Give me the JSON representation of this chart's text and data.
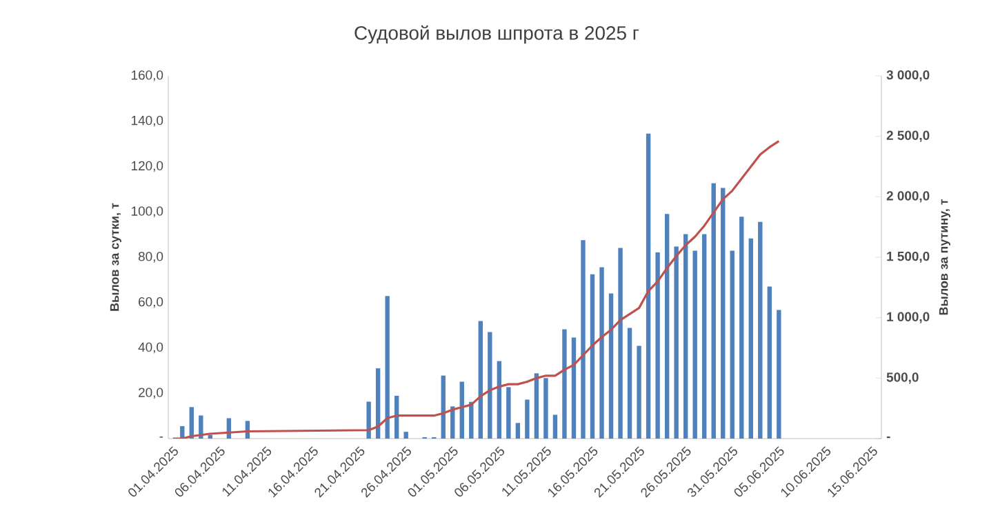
{
  "chart_data": {
    "type": "bar",
    "title": "Судовой вылов шпрота в 2025 г",
    "ylabel": "Вылов за сутки,  т",
    "y2label": "Вылов за путину, т",
    "xlim": [
      "2025-03-31T12:00",
      "2025-06-16"
    ],
    "xticks": [
      {
        "value": "2025-04-01",
        "label": "01.04.2025"
      },
      {
        "value": "2025-04-06",
        "label": "06.04.2025"
      },
      {
        "value": "2025-04-11",
        "label": "11.04.2025"
      },
      {
        "value": "2025-04-16",
        "label": "16.04.2025"
      },
      {
        "value": "2025-04-21",
        "label": "21.04.2025"
      },
      {
        "value": "2025-04-26",
        "label": "26.04.2025"
      },
      {
        "value": "2025-05-01",
        "label": "01.05.2025"
      },
      {
        "value": "2025-05-06",
        "label": "06.05.2025"
      },
      {
        "value": "2025-05-11",
        "label": "11.05.2025"
      },
      {
        "value": "2025-05-16",
        "label": "16.05.2025"
      },
      {
        "value": "2025-05-21",
        "label": "21.05.2025"
      },
      {
        "value": "2025-05-26",
        "label": "26.05.2025"
      },
      {
        "value": "2025-05-31",
        "label": "31.05.2025"
      },
      {
        "value": "2025-06-05",
        "label": "05.06.2025"
      },
      {
        "value": "2025-06-10",
        "label": "10.06.2025"
      },
      {
        "value": "2025-06-15",
        "label": "15.06.2025"
      }
    ],
    "ylim": [
      0,
      160
    ],
    "yticks": [
      {
        "value": 0,
        "label": "-"
      },
      {
        "value": 20,
        "label": "20,0"
      },
      {
        "value": 40,
        "label": "40,0"
      },
      {
        "value": 60,
        "label": "60,0"
      },
      {
        "value": 80,
        "label": "80,0"
      },
      {
        "value": 100,
        "label": "100,0"
      },
      {
        "value": 120,
        "label": "120,0"
      },
      {
        "value": 140,
        "label": "140,0"
      },
      {
        "value": 160,
        "label": "160,0"
      }
    ],
    "y2lim": [
      0,
      3000
    ],
    "y2ticks": [
      {
        "value": 0,
        "label": "-"
      },
      {
        "value": 500,
        "label": "500,0"
      },
      {
        "value": 1000,
        "label": "1 000,0"
      },
      {
        "value": 1500,
        "label": "1 500,0"
      },
      {
        "value": 2000,
        "label": "2 000,0"
      },
      {
        "value": 2500,
        "label": "2 500,0"
      },
      {
        "value": 3000,
        "label": "3 000,0"
      }
    ],
    "grid": false,
    "legend": false,
    "series": [
      {
        "color": "#4f81bd",
        "x": [
          "2025-04-02",
          "2025-04-03",
          "2025-04-04",
          "2025-04-05",
          "2025-04-07",
          "2025-04-09",
          "2025-04-22",
          "2025-04-23",
          "2025-04-24",
          "2025-04-25",
          "2025-04-26",
          "2025-04-28",
          "2025-04-29",
          "2025-04-30",
          "2025-05-01",
          "2025-05-02",
          "2025-05-03",
          "2025-05-04",
          "2025-05-05",
          "2025-05-06",
          "2025-05-07",
          "2025-05-08",
          "2025-05-09",
          "2025-05-10",
          "2025-05-11",
          "2025-05-12",
          "2025-05-13",
          "2025-05-14",
          "2025-05-15",
          "2025-05-16",
          "2025-05-17",
          "2025-05-18",
          "2025-05-19",
          "2025-05-20",
          "2025-05-21",
          "2025-05-22",
          "2025-05-23",
          "2025-05-24",
          "2025-05-25",
          "2025-05-26",
          "2025-05-27",
          "2025-05-28",
          "2025-05-29",
          "2025-05-30",
          "2025-05-31",
          "2025-06-01",
          "2025-06-02",
          "2025-06-03",
          "2025-06-04",
          "2025-06-05"
        ],
        "values": [
          5.5,
          13.9,
          10.2,
          1.6,
          9.0,
          7.8,
          16.3,
          31.0,
          62.9,
          18.9,
          3.0,
          0.6,
          0.6,
          27.8,
          14.2,
          25.1,
          16.2,
          51.9,
          47.0,
          34.2,
          22.7,
          6.9,
          17.2,
          28.8,
          26.7,
          10.5,
          48.2,
          44.6,
          87.5,
          72.5,
          75.6,
          64.0,
          84.1,
          48.8,
          40.9,
          134.5,
          82.1,
          99.1,
          84.7,
          90.2,
          82.9,
          90.2,
          112.6,
          110.6,
          82.9,
          97.9,
          88.3,
          95.6,
          67.1,
          56.7
        ]
      },
      {
        "type": "line",
        "axis": "y2",
        "color": "#c0504d",
        "marker": "none",
        "line_style": "solid",
        "x": [
          "2025-04-01",
          "2025-04-02",
          "2025-04-03",
          "2025-04-04",
          "2025-04-05",
          "2025-04-07",
          "2025-04-09",
          "2025-04-22",
          "2025-04-23",
          "2025-04-24",
          "2025-04-25",
          "2025-04-26",
          "2025-04-29",
          "2025-04-30",
          "2025-05-01",
          "2025-05-02",
          "2025-05-03",
          "2025-05-04",
          "2025-05-05",
          "2025-05-06",
          "2025-05-07",
          "2025-05-08",
          "2025-05-09",
          "2025-05-10",
          "2025-05-11",
          "2025-05-12",
          "2025-05-13",
          "2025-05-14",
          "2025-05-15",
          "2025-05-16",
          "2025-05-17",
          "2025-05-18",
          "2025-05-19",
          "2025-05-20",
          "2025-05-21",
          "2025-05-22",
          "2025-05-23",
          "2025-05-24",
          "2025-05-25",
          "2025-05-26",
          "2025-05-27",
          "2025-05-28",
          "2025-05-29",
          "2025-05-30",
          "2025-05-31",
          "2025-06-01",
          "2025-06-02",
          "2025-06-03",
          "2025-06-04",
          "2025-06-05"
        ],
        "values": [
          0,
          0,
          20,
          30,
          40,
          50,
          60,
          70,
          100,
          170,
          190,
          190,
          190,
          210,
          240,
          260,
          280,
          350,
          400,
          430,
          450,
          450,
          470,
          500,
          520,
          520,
          570,
          610,
          690,
          770,
          840,
          900,
          980,
          1030,
          1080,
          1220,
          1300,
          1410,
          1510,
          1600,
          1670,
          1760,
          1870,
          1980,
          2050,
          2150,
          2250,
          2350,
          2410,
          2460
        ]
      }
    ]
  }
}
